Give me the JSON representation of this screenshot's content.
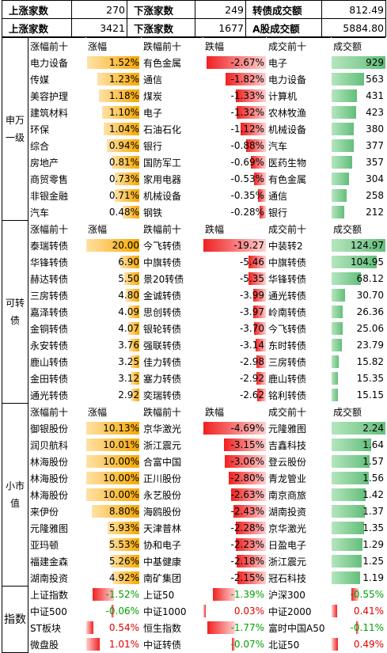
{
  "header1": {
    "up_label": "上涨家数",
    "up": "270",
    "down_label": "下涨家数",
    "down": "249",
    "vol_label": "转债成交额",
    "vol": "812.49"
  },
  "header2": {
    "up_label": "上涨家数",
    "up": "3421",
    "down_label": "下涨家数",
    "down": "1677",
    "vol_label": "A股成交额",
    "vol": "5884.80"
  },
  "sections": [
    {
      "label": "申万一级",
      "cols": [
        "涨幅前十",
        "涨幅",
        "跌幅前十",
        "跌幅",
        "成交前十",
        "成交额"
      ],
      "rows": [
        [
          "电力设备",
          "1.52%",
          "有色金属",
          "-2.67%",
          "电子",
          "929"
        ],
        [
          "传媒",
          "1.23%",
          "通信",
          "-1.82%",
          "电力设备",
          "563"
        ],
        [
          "美容护理",
          "1.18%",
          "煤炭",
          "-1.33%",
          "计算机",
          "431"
        ],
        [
          "建筑材料",
          "1.10%",
          "电子",
          "-1.32%",
          "农林牧渔",
          "423"
        ],
        [
          "环保",
          "1.04%",
          "石油石化",
          "-1.12%",
          "机械设备",
          "380"
        ],
        [
          "综合",
          "0.94%",
          "银行",
          "-0.88%",
          "汽车",
          "377"
        ],
        [
          "房地产",
          "0.81%",
          "国防军工",
          "-0.69%",
          "医药生物",
          "357"
        ],
        [
          "商贸零售",
          "0.73%",
          "家用电器",
          "-0.53%",
          "有色金属",
          "304"
        ],
        [
          "非银金融",
          "0.71%",
          "机械设备",
          "-0.35%",
          "通信",
          "258"
        ],
        [
          "汽车",
          "0.48%",
          "钢铁",
          "-0.28%",
          "银行",
          "212"
        ]
      ],
      "up_max": 1.6,
      "down_max": 2.8,
      "vol_max": 929
    },
    {
      "label": "可转债",
      "cols": [
        "涨幅前十",
        "涨幅",
        "跌幅前十",
        "跌幅",
        "成交前十",
        "成交额"
      ],
      "rows": [
        [
          "泰瑞转债",
          "20.00",
          "今飞转债",
          "-19.27",
          "中装转2",
          "124.97"
        ],
        [
          "华锋转债",
          "6.90",
          "中旗转债",
          "-5.46",
          "中旗转债",
          "104.95"
        ],
        [
          "赫达转债",
          "5.50",
          "景20转债",
          "-5.35",
          "华锋转债",
          "68.12"
        ],
        [
          "三房转债",
          "4.80",
          "金诚转债",
          "-3.99",
          "通光转债",
          "30.70"
        ],
        [
          "嘉泽转债",
          "4.09",
          "思创转债",
          "-3.97",
          "岭南转债",
          "26.36"
        ],
        [
          "金铜转债",
          "4.07",
          "银轮转债",
          "-3.70",
          "今飞转债",
          "25.06"
        ],
        [
          "永安转债",
          "3.76",
          "强联转债",
          "-3.14",
          "东时转债",
          "23.79"
        ],
        [
          "鹿山转债",
          "3.25",
          "佳力转债",
          "-2.98",
          "三房转债",
          "15.82"
        ],
        [
          "金田转债",
          "3.12",
          "塞力转债",
          "-2.92",
          "鹿山转债",
          "15.35"
        ],
        [
          "通光转债",
          "2.92",
          "奕瑞转债",
          "-2.62",
          "铭利转债",
          "15.15"
        ]
      ],
      "up_max": 20,
      "down_max": 19.27,
      "vol_max": 124.97
    },
    {
      "label": "小市值",
      "cols": [
        "涨幅前十",
        "涨幅",
        "跌幅前十",
        "跌幅",
        "成交前十",
        "成交额"
      ],
      "rows": [
        [
          "御银股份",
          "10.13%",
          "京华激光",
          "-4.69%",
          "元隆雅图",
          "2.24"
        ],
        [
          "润贝航科",
          "10.01%",
          "浙江震元",
          "-3.15%",
          "吉鑫科技",
          "1.64"
        ],
        [
          "林海股份",
          "10.00%",
          "合富中国",
          "-3.06%",
          "登云股份",
          "1.57"
        ],
        [
          "林海股份",
          "10.00%",
          "正川股份",
          "-2.80%",
          "青龙管业",
          "1.56"
        ],
        [
          "林海股份",
          "10.00%",
          "永艺股份",
          "-2.63%",
          "南京商旅",
          "1.42"
        ],
        [
          "来伊份",
          "8.80%",
          "海鸥股份",
          "-2.43%",
          "湖南投资",
          "1.37"
        ],
        [
          "元隆雅图",
          "5.93%",
          "天津普林",
          "-2.28%",
          "京华激光",
          "1.35"
        ],
        [
          "亚玛顿",
          "5.53%",
          "协和电子",
          "-2.23%",
          "日盈电子",
          "1.29"
        ],
        [
          "福建金森",
          "5.26%",
          "中基健康",
          "-2.18%",
          "浙江震元",
          "1.25"
        ],
        [
          "湖南投资",
          "4.92%",
          "南矿集团",
          "-2.15%",
          "冠石科技",
          "1.19"
        ]
      ],
      "up_max": 10.13,
      "down_max": 4.69,
      "vol_max": 2.24
    }
  ],
  "indices": {
    "label": "指数",
    "rows": [
      [
        [
          "上证指数",
          "-1.52%",
          -1.52
        ],
        [
          "上证50",
          "-1.39%",
          -1.39
        ],
        [
          "沪深300",
          "-0.55%",
          -0.55
        ]
      ],
      [
        [
          "中证500",
          "-0.06%",
          -0.06
        ],
        [
          "中证1000",
          "0.03%",
          0.03
        ],
        [
          "中证2000",
          "0.41%",
          0.41
        ]
      ],
      [
        [
          "ST板块",
          "0.54%",
          0.54
        ],
        [
          "恒生指数",
          "-1.77%",
          -1.77
        ],
        [
          "富时中国A50",
          "-0.11%",
          -0.11
        ]
      ],
      [
        [
          "微盘股",
          "1.01%",
          1.01
        ],
        [
          "中证转债",
          "-0.07%",
          -0.07
        ],
        [
          "北证50",
          "0.49%",
          0.49
        ]
      ]
    ]
  },
  "colors": {
    "yellow": "#f7a800",
    "red": "#f02020",
    "green": "#63be7b",
    "up_text": "#e00000",
    "down_text": "#00a000"
  }
}
